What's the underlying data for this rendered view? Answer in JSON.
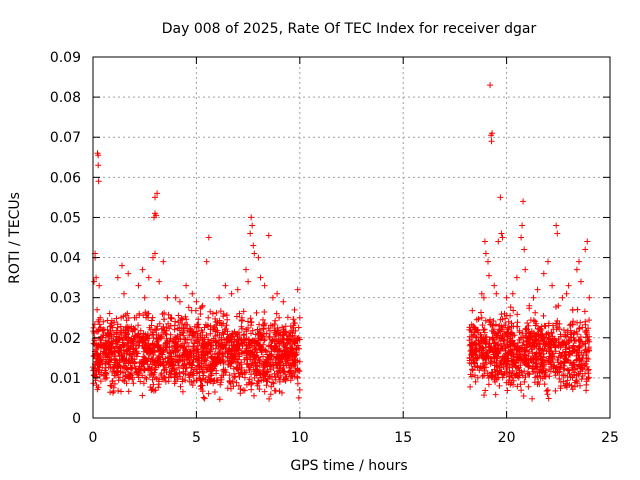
{
  "chart_data": {
    "type": "scatter",
    "title": "Day 008 of 2025, Rate Of TEC Index for receiver dgar",
    "xlabel": "GPS time / hours",
    "ylabel": "ROTI / TECUs",
    "xlim": [
      0,
      25
    ],
    "ylim": [
      0,
      0.09
    ],
    "xticks": [
      0,
      5,
      10,
      15,
      20,
      25
    ],
    "xtick_labels": [
      "0",
      "5",
      "10",
      "15",
      "20",
      "25"
    ],
    "yticks": [
      0,
      0.01,
      0.02,
      0.03,
      0.04,
      0.05,
      0.06,
      0.07,
      0.08,
      0.09
    ],
    "ytick_labels": [
      "0",
      "0.01",
      "0.02",
      "0.03",
      "0.04",
      "0.05",
      "0.06",
      "0.07",
      "0.08",
      "0.09"
    ],
    "grid": true,
    "marker": "+",
    "color": "#ff0000",
    "series": [
      {
        "name": "ROTI",
        "points": [
          [
            0.05,
            0.034
          ],
          [
            0.1,
            0.04
          ],
          [
            0.1,
            0.041
          ],
          [
            0.15,
            0.035
          ],
          [
            0.2,
            0.027
          ],
          [
            0.22,
            0.066
          ],
          [
            0.25,
            0.0655
          ],
          [
            0.25,
            0.063
          ],
          [
            0.27,
            0.059
          ],
          [
            0.3,
            0.033
          ],
          [
            0.35,
            0.025
          ],
          [
            0.5,
            0.024
          ],
          [
            0.7,
            0.021
          ],
          [
            0.9,
            0.023
          ],
          [
            1.2,
            0.035
          ],
          [
            1.4,
            0.038
          ],
          [
            1.5,
            0.031
          ],
          [
            1.7,
            0.036
          ],
          [
            2.0,
            0.025
          ],
          [
            2.2,
            0.033
          ],
          [
            2.4,
            0.037
          ],
          [
            2.5,
            0.03
          ],
          [
            2.7,
            0.035
          ],
          [
            2.9,
            0.04
          ],
          [
            3.0,
            0.041
          ],
          [
            2.95,
            0.05
          ],
          [
            3.0,
            0.051
          ],
          [
            3.05,
            0.0505
          ],
          [
            3.0,
            0.055
          ],
          [
            3.1,
            0.056
          ],
          [
            3.2,
            0.034
          ],
          [
            3.4,
            0.039
          ],
          [
            3.6,
            0.03
          ],
          [
            3.8,
            0.025
          ],
          [
            4.0,
            0.03
          ],
          [
            4.2,
            0.029
          ],
          [
            4.5,
            0.033
          ],
          [
            4.8,
            0.031
          ],
          [
            5.0,
            0.029
          ],
          [
            5.3,
            0.028
          ],
          [
            5.5,
            0.039
          ],
          [
            5.6,
            0.045
          ],
          [
            5.8,
            0.026
          ],
          [
            6.1,
            0.03
          ],
          [
            6.4,
            0.033
          ],
          [
            6.7,
            0.031
          ],
          [
            7.0,
            0.032
          ],
          [
            7.2,
            0.025
          ],
          [
            7.4,
            0.037
          ],
          [
            7.5,
            0.034
          ],
          [
            7.6,
            0.046
          ],
          [
            7.65,
            0.05
          ],
          [
            7.7,
            0.048
          ],
          [
            7.75,
            0.043
          ],
          [
            7.8,
            0.041
          ],
          [
            8.0,
            0.04
          ],
          [
            8.1,
            0.035
          ],
          [
            8.3,
            0.033
          ],
          [
            8.5,
            0.0455
          ],
          [
            8.7,
            0.03
          ],
          [
            8.9,
            0.031
          ],
          [
            9.0,
            0.025
          ],
          [
            9.2,
            0.029
          ],
          [
            9.9,
            0.032
          ],
          [
            10.0,
            0.025
          ],
          [
            9.95,
            0.02
          ],
          [
            10.0,
            0.014
          ],
          [
            9.9,
            0.01
          ],
          [
            10.0,
            0.007
          ],
          [
            9.95,
            0.005
          ],
          [
            18.2,
            0.022
          ],
          [
            18.3,
            0.017
          ],
          [
            18.4,
            0.015
          ],
          [
            18.5,
            0.009
          ],
          [
            18.6,
            0.013
          ],
          [
            18.8,
            0.031
          ],
          [
            18.9,
            0.03
          ],
          [
            18.95,
            0.044
          ],
          [
            19.0,
            0.041
          ],
          [
            19.1,
            0.039
          ],
          [
            19.15,
            0.0355
          ],
          [
            19.2,
            0.083
          ],
          [
            19.25,
            0.0705
          ],
          [
            19.3,
            0.071
          ],
          [
            19.27,
            0.069
          ],
          [
            19.4,
            0.033
          ],
          [
            19.5,
            0.031
          ],
          [
            19.6,
            0.044
          ],
          [
            19.7,
            0.055
          ],
          [
            19.75,
            0.046
          ],
          [
            19.8,
            0.045
          ],
          [
            19.9,
            0.026
          ],
          [
            20.0,
            0.03
          ],
          [
            20.1,
            0.024
          ],
          [
            20.3,
            0.031
          ],
          [
            20.5,
            0.035
          ],
          [
            20.7,
            0.045
          ],
          [
            20.75,
            0.048
          ],
          [
            20.8,
            0.054
          ],
          [
            20.85,
            0.042
          ],
          [
            20.9,
            0.037
          ],
          [
            21.1,
            0.028
          ],
          [
            21.3,
            0.03
          ],
          [
            21.5,
            0.032
          ],
          [
            21.8,
            0.036
          ],
          [
            22.0,
            0.039
          ],
          [
            22.2,
            0.033
          ],
          [
            22.4,
            0.048
          ],
          [
            22.45,
            0.046
          ],
          [
            22.5,
            0.028
          ],
          [
            22.7,
            0.03
          ],
          [
            22.9,
            0.031
          ],
          [
            23.0,
            0.033
          ],
          [
            23.2,
            0.027
          ],
          [
            23.4,
            0.037
          ],
          [
            23.5,
            0.039
          ],
          [
            23.6,
            0.034
          ],
          [
            23.8,
            0.042
          ],
          [
            23.9,
            0.044
          ],
          [
            24.0,
            0.03
          ]
        ],
        "clusters": [
          {
            "x_from": 0.0,
            "x_to": 10.0,
            "y_from": 0.003,
            "y_to": 0.025,
            "count": 1800
          },
          {
            "x_from": 18.2,
            "x_to": 24.0,
            "y_from": 0.003,
            "y_to": 0.025,
            "count": 1000
          }
        ]
      }
    ]
  }
}
